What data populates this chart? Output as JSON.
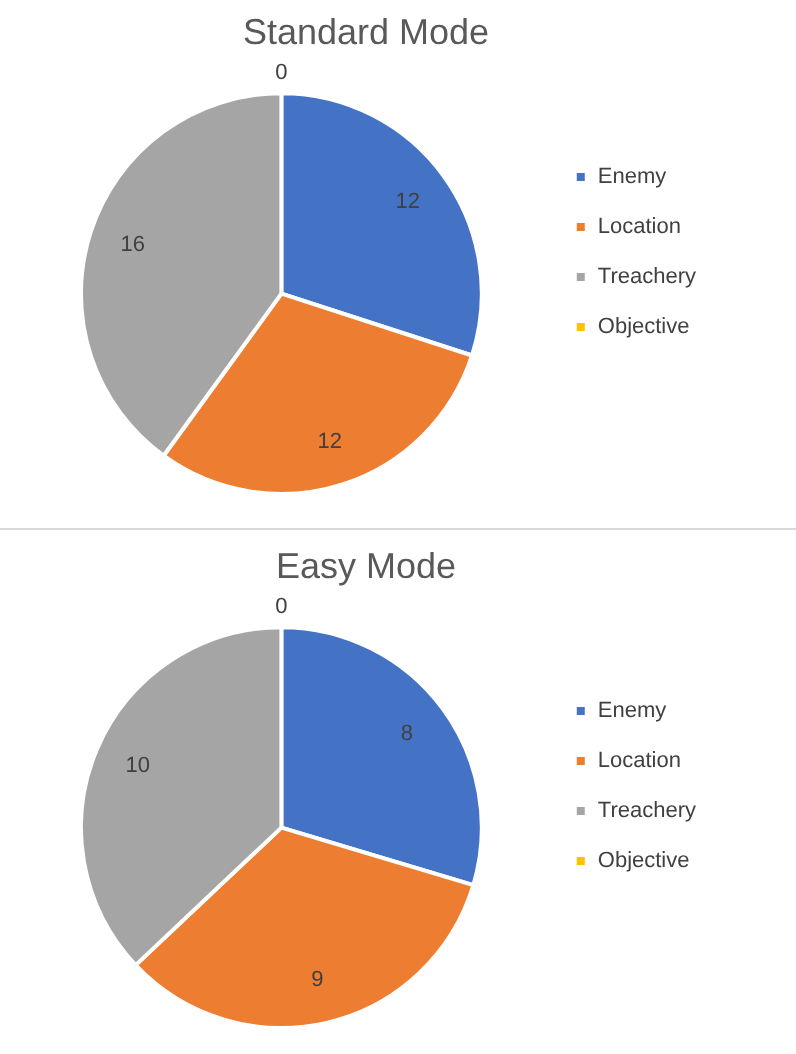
{
  "chart_data": [
    {
      "type": "pie",
      "title": "Standard Mode",
      "categories": [
        "Enemy",
        "Location",
        "Treachery",
        "Objective"
      ],
      "values": [
        12,
        12,
        16,
        0
      ],
      "value_labels": [
        "12",
        "12",
        "16",
        "0"
      ],
      "colors": [
        "#4472c4",
        "#ed7d31",
        "#a5a5a5",
        "#ffc000"
      ],
      "legend": "right"
    },
    {
      "type": "pie",
      "title": "Easy Mode",
      "categories": [
        "Enemy",
        "Location",
        "Treachery",
        "Objective"
      ],
      "values": [
        8,
        9,
        10,
        0
      ],
      "value_labels": [
        "8",
        "9",
        "10",
        "0"
      ],
      "colors": [
        "#4472c4",
        "#ed7d31",
        "#a5a5a5",
        "#ffc000"
      ],
      "legend": "right"
    }
  ]
}
